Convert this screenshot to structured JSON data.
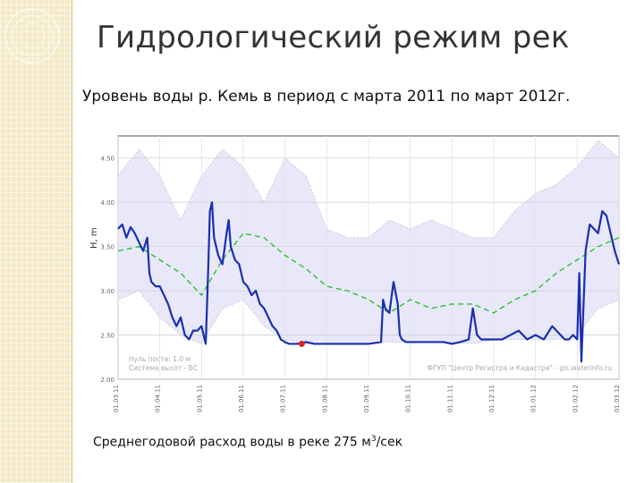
{
  "slide": {
    "title": "Гидрологический режим рек",
    "subtitle": "Уровень воды р. Кемь в период с марта 2011 по март 2012г.",
    "footnote_prefix": "Среднегодовой расход воды в реке 275 м",
    "footnote_sup": "3",
    "footnote_suffix": "/сек"
  },
  "chart_data": {
    "type": "line",
    "ylabel": "H, m",
    "ylim": [
      2.0,
      4.75
    ],
    "yticks": [
      "2.00",
      "2.50",
      "3.00",
      "3.50",
      "4.00",
      "4.50"
    ],
    "x_tick_labels": [
      "01.03.11",
      "01.04.11",
      "01.05.11",
      "01.06.11",
      "01.07.11",
      "01.08.11",
      "01.09.11",
      "01.10.11",
      "01.11.11",
      "01.12.11",
      "01.01.12",
      "01.02.12",
      "01.03.12"
    ],
    "annotations": {
      "left": [
        "Нуль поста: 1.0 м",
        "Система высот - БС"
      ],
      "right": "ФГУП \"Центр Регистра и Кадастра\" - gis.waterinfo.ru"
    },
    "colors": {
      "observed": "#1a2fb0",
      "mean": "#2fbf2f",
      "range_fill": "#e8e8fa",
      "range_line": "#c8c8d8",
      "marker": "#e02020"
    },
    "series": [
      {
        "key": "observed",
        "x": [
          0,
          0.1,
          0.2,
          0.3,
          0.4,
          0.5,
          0.6,
          0.7,
          0.75,
          0.8,
          0.9,
          1.0,
          1.1,
          1.2,
          1.3,
          1.4,
          1.5,
          1.6,
          1.7,
          1.8,
          1.9,
          2.0,
          2.1,
          2.15,
          2.2,
          2.25,
          2.3,
          2.4,
          2.5,
          2.6,
          2.65,
          2.7,
          2.8,
          2.9,
          3.0,
          3.1,
          3.2,
          3.3,
          3.4,
          3.5,
          3.6,
          3.7,
          3.8,
          3.9,
          4.0,
          4.1,
          4.3,
          4.5,
          4.7,
          5.0,
          5.5,
          6.0,
          6.3,
          6.35,
          6.4,
          6.5,
          6.6,
          6.7,
          6.75,
          6.8,
          6.9,
          7.0,
          7.5,
          7.8,
          8.0,
          8.2,
          8.4,
          8.5,
          8.6,
          8.7,
          8.8,
          9.0,
          9.2,
          9.4,
          9.6,
          9.8,
          10.0,
          10.2,
          10.4,
          10.6,
          10.7,
          10.75,
          10.8,
          10.9,
          11.0,
          11.05,
          11.1,
          11.2,
          11.3,
          11.4,
          11.5,
          11.6,
          11.7,
          11.8,
          11.9,
          12.0
        ],
        "values": [
          3.7,
          3.75,
          3.6,
          3.72,
          3.65,
          3.55,
          3.45,
          3.6,
          3.2,
          3.1,
          3.05,
          3.05,
          2.95,
          2.85,
          2.7,
          2.6,
          2.7,
          2.5,
          2.45,
          2.55,
          2.55,
          2.6,
          2.4,
          3.1,
          3.9,
          4.0,
          3.6,
          3.4,
          3.3,
          3.65,
          3.8,
          3.5,
          3.35,
          3.3,
          3.1,
          3.05,
          2.95,
          3.0,
          2.85,
          2.8,
          2.7,
          2.6,
          2.55,
          2.45,
          2.42,
          2.4,
          2.4,
          2.42,
          2.4,
          2.4,
          2.4,
          2.4,
          2.42,
          2.9,
          2.8,
          2.75,
          3.1,
          2.85,
          2.5,
          2.45,
          2.42,
          2.42,
          2.42,
          2.42,
          2.4,
          2.42,
          2.45,
          2.8,
          2.5,
          2.45,
          2.45,
          2.45,
          2.45,
          2.5,
          2.55,
          2.45,
          2.5,
          2.45,
          2.6,
          2.5,
          2.45,
          2.45,
          2.45,
          2.5,
          2.45,
          3.2,
          2.2,
          3.45,
          3.75,
          3.7,
          3.65,
          3.9,
          3.85,
          3.65,
          3.45,
          3.3
        ]
      },
      {
        "key": "mean",
        "x": [
          0,
          0.5,
          1,
          1.5,
          2,
          2.5,
          3,
          3.5,
          4,
          4.5,
          5,
          5.5,
          6,
          6.5,
          7,
          7.5,
          8,
          8.5,
          9,
          9.5,
          10,
          10.5,
          11,
          11.5,
          12
        ],
        "values": [
          3.45,
          3.5,
          3.35,
          3.2,
          2.95,
          3.35,
          3.65,
          3.6,
          3.4,
          3.25,
          3.05,
          3.0,
          2.9,
          2.75,
          2.9,
          2.8,
          2.85,
          2.85,
          2.75,
          2.9,
          3.0,
          3.2,
          3.35,
          3.5,
          3.6
        ]
      },
      {
        "key": "max",
        "x": [
          0,
          0.5,
          1,
          1.5,
          2,
          2.5,
          3,
          3.5,
          4,
          4.5,
          5,
          5.5,
          6,
          6.5,
          7,
          7.5,
          8,
          8.5,
          9,
          9.5,
          10,
          10.5,
          11,
          11.5,
          12
        ],
        "values": [
          4.3,
          4.6,
          4.3,
          3.8,
          4.3,
          4.6,
          4.4,
          4.0,
          4.5,
          4.3,
          3.7,
          3.6,
          3.6,
          3.8,
          3.7,
          3.8,
          3.7,
          3.6,
          3.6,
          3.9,
          4.1,
          4.2,
          4.4,
          4.7,
          4.5
        ]
      },
      {
        "key": "min",
        "x": [
          0,
          0.5,
          1,
          1.5,
          2,
          2.5,
          3,
          3.5,
          4,
          4.5,
          5,
          5.5,
          6,
          6.5,
          7,
          7.5,
          8,
          8.5,
          9,
          9.5,
          10,
          10.5,
          11,
          11.5,
          12
        ],
        "values": [
          2.9,
          3.0,
          2.7,
          2.5,
          2.4,
          2.8,
          2.9,
          2.6,
          2.45,
          2.4,
          2.4,
          2.4,
          2.4,
          2.42,
          2.42,
          2.42,
          2.42,
          2.4,
          2.45,
          2.45,
          2.45,
          2.45,
          2.5,
          2.8,
          2.9
        ]
      }
    ],
    "marker": {
      "x": 4.4,
      "y": 2.4
    }
  }
}
